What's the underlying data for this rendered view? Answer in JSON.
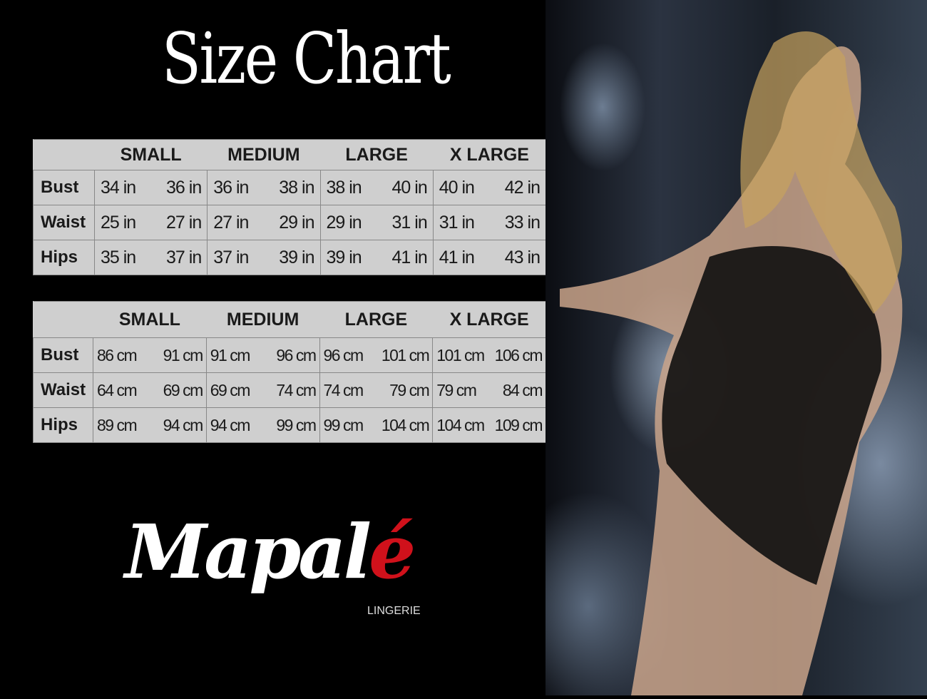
{
  "title": "Size Chart",
  "sizes": [
    "SMALL",
    "MEDIUM",
    "LARGE",
    "X LARGE"
  ],
  "inches_table": {
    "rows": [
      {
        "label": "Bust",
        "values": [
          [
            "34 in",
            "36 in"
          ],
          [
            "36 in",
            "38 in"
          ],
          [
            "38 in",
            "40 in"
          ],
          [
            "40 in",
            "42 in"
          ]
        ]
      },
      {
        "label": "Waist",
        "values": [
          [
            "25 in",
            "27 in"
          ],
          [
            "27 in",
            "29 in"
          ],
          [
            "29 in",
            "31 in"
          ],
          [
            "31 in",
            "33 in"
          ]
        ]
      },
      {
        "label": "Hips",
        "values": [
          [
            "35 in",
            "37 in"
          ],
          [
            "37 in",
            "39 in"
          ],
          [
            "39 in",
            "41 in"
          ],
          [
            "41 in",
            "43 in"
          ]
        ]
      }
    ]
  },
  "cm_table": {
    "rows": [
      {
        "label": "Bust",
        "values": [
          [
            "86 cm",
            "91 cm"
          ],
          [
            "91 cm",
            "96 cm"
          ],
          [
            "96 cm",
            "101 cm"
          ],
          [
            "101 cm",
            "106 cm"
          ]
        ]
      },
      {
        "label": "Waist",
        "values": [
          [
            "64 cm",
            "69 cm"
          ],
          [
            "69 cm",
            "74 cm"
          ],
          [
            "74 cm",
            "79  cm"
          ],
          [
            "79 cm",
            "84 cm"
          ]
        ]
      },
      {
        "label": "Hips",
        "values": [
          [
            "89 cm",
            "94 cm"
          ],
          [
            "94 cm",
            "99 cm"
          ],
          [
            "99 cm",
            "104 cm"
          ],
          [
            "104 cm",
            "109 cm"
          ]
        ]
      }
    ]
  },
  "logo": {
    "name_main": "Mapal",
    "name_accent": "é",
    "subtitle": "LINGERIE"
  },
  "colors": {
    "background": "#000000",
    "table_bg": "#cfcfcf",
    "logo_accent": "#d0111b"
  }
}
